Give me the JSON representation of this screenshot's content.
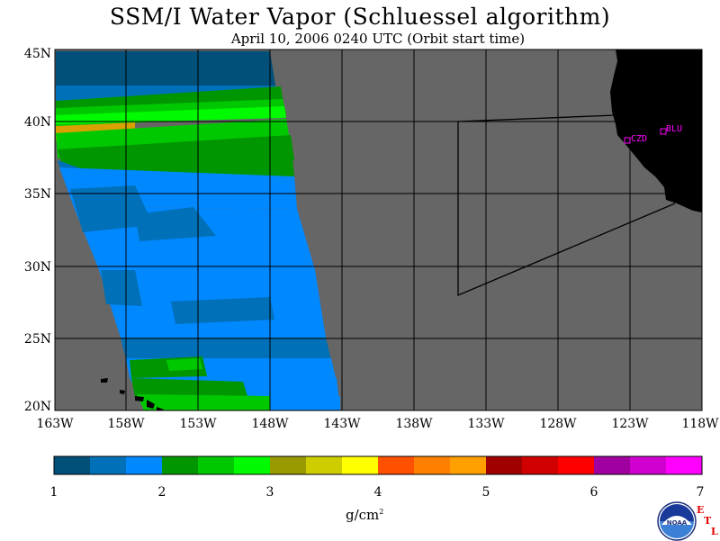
{
  "title": "SSM/I Water Vapor (Schluessel algorithm)",
  "subtitle": "April 10, 2006  0240 UTC  (Orbit start time)",
  "map": {
    "lon_labels": [
      "163W",
      "158W",
      "153W",
      "148W",
      "143W",
      "138W",
      "133W",
      "128W",
      "123W",
      "118W"
    ],
    "lat_labels": [
      "45N",
      "40N",
      "35N",
      "30N",
      "25N",
      "20N"
    ],
    "lon_range": [
      -163,
      -118
    ],
    "lat_range": [
      20,
      45
    ],
    "background_color": "#666666",
    "land_color": "#000000",
    "stations": [
      {
        "name": "CZD",
        "lon": -123.1,
        "lat": 38.6
      },
      {
        "name": "BLU",
        "lon": -120.7,
        "lat": 39.3
      }
    ]
  },
  "colorbar": {
    "colors": [
      "#00507a",
      "#0070b8",
      "#0088ff",
      "#009600",
      "#00c800",
      "#00fa00",
      "#9a9a00",
      "#cdcd00",
      "#ffff00",
      "#ff5000",
      "#ff8000",
      "#ffa000",
      "#a00000",
      "#d00000",
      "#ff0000",
      "#a000a0",
      "#d000d0",
      "#ff00ff"
    ],
    "ticks": [
      "1",
      "2",
      "3",
      "4",
      "5",
      "6",
      "7"
    ],
    "units": "g/cm",
    "units_sup": "2"
  },
  "logo": {
    "noaa_text": "NOAA",
    "etl": [
      "E",
      "T",
      "L"
    ]
  }
}
